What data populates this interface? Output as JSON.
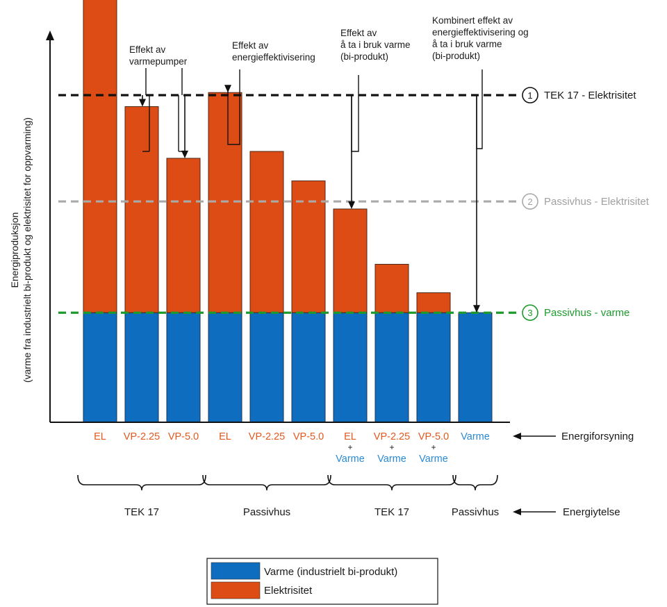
{
  "chart_data": {
    "type": "bar",
    "stacked": true,
    "ylabel": "Energiproduksjon",
    "ylabel2": "(varme fra industrielt bi-produkt og elektrisitet for oppvarming)",
    "ylim": [
      0,
      100
    ],
    "ticks_shown": false,
    "grid": false,
    "categories": [
      {
        "label": "EL",
        "sub": []
      },
      {
        "label": "VP-2.25",
        "sub": []
      },
      {
        "label": "VP-5.0",
        "sub": []
      },
      {
        "label": "EL",
        "sub": []
      },
      {
        "label": "VP-2.25",
        "sub": []
      },
      {
        "label": "VP-5.0",
        "sub": []
      },
      {
        "label": "EL",
        "sub": [
          "+",
          "Varme"
        ]
      },
      {
        "label": "VP-2.25",
        "sub": [
          "+",
          "Varme"
        ]
      },
      {
        "label": "VP-5.0",
        "sub": [
          "+",
          "Varme"
        ]
      },
      {
        "label": "Varme",
        "sub": []
      }
    ],
    "category_colors": [
      "#e2581e",
      "#e2581e",
      "#e2581e",
      "#e2581e",
      "#e2581e",
      "#e2581e",
      "#e2581e",
      "#e2581e",
      "#e2581e",
      "#2a8ad4"
    ],
    "series": [
      {
        "name": "Varme (industrielt bi-produkt)",
        "color": "#0f6dbf",
        "values": [
          0,
          0,
          0,
          0,
          0,
          0,
          33.5,
          33.5,
          33.5,
          33.5
        ]
      },
      {
        "name": "Elektrisitet",
        "color": "#dd4c14",
        "values": [
          100,
          63,
          47.2,
          67.3,
          49.3,
          40.3,
          31.7,
          14.8,
          6.1,
          0
        ]
      }
    ],
    "base_fill_color": "#0f6dbf",
    "base_fill_value": 33.5,
    "reference_lines": [
      {
        "number": "1",
        "label": "TEK 17 - Elektrisitet",
        "value": 100,
        "color": "#111111",
        "text_color": "#1a1a1a"
      },
      {
        "number": "2",
        "label": "Passivhus - Elektrisitet",
        "value": 67.5,
        "color": "#a9a9a9",
        "text_color": "#a0a0a0"
      },
      {
        "number": "3",
        "label": "Passivhus - varme",
        "value": 33.5,
        "color": "#1c9a2c",
        "text_color": "#1c9a2c"
      }
    ],
    "annotations": [
      {
        "lines": [
          "Effekt av",
          "varmepumper"
        ],
        "targets": [
          1,
          2
        ]
      },
      {
        "lines": [
          "Effekt av",
          "energieffektivisering"
        ],
        "targets": [
          3
        ]
      },
      {
        "lines": [
          "Effekt av",
          "å ta i bruk varme",
          "(bi-produkt)"
        ],
        "targets": [
          6
        ]
      },
      {
        "lines": [
          "Kombinert effekt av",
          "energieffektivisering og",
          "å ta i bruk varme",
          "(bi-produkt)"
        ],
        "targets": [
          9
        ]
      }
    ],
    "groups": [
      {
        "label": "TEK 17",
        "from": 0,
        "to": 2
      },
      {
        "label": "Passivhus",
        "from": 3,
        "to": 5
      },
      {
        "label": "TEK 17",
        "from": 6,
        "to": 8
      },
      {
        "label": "Passivhus",
        "from": 9,
        "to": 9
      }
    ],
    "row_labels": {
      "supply": "Energiforsyning",
      "performance": "Energiytelse"
    },
    "legend": {
      "position": "bottom-center",
      "items": [
        {
          "label": "Varme (industrielt bi-produkt)",
          "color": "#0f6dbf"
        },
        {
          "label": "Elektrisitet",
          "color": "#dd4c14"
        }
      ]
    }
  }
}
